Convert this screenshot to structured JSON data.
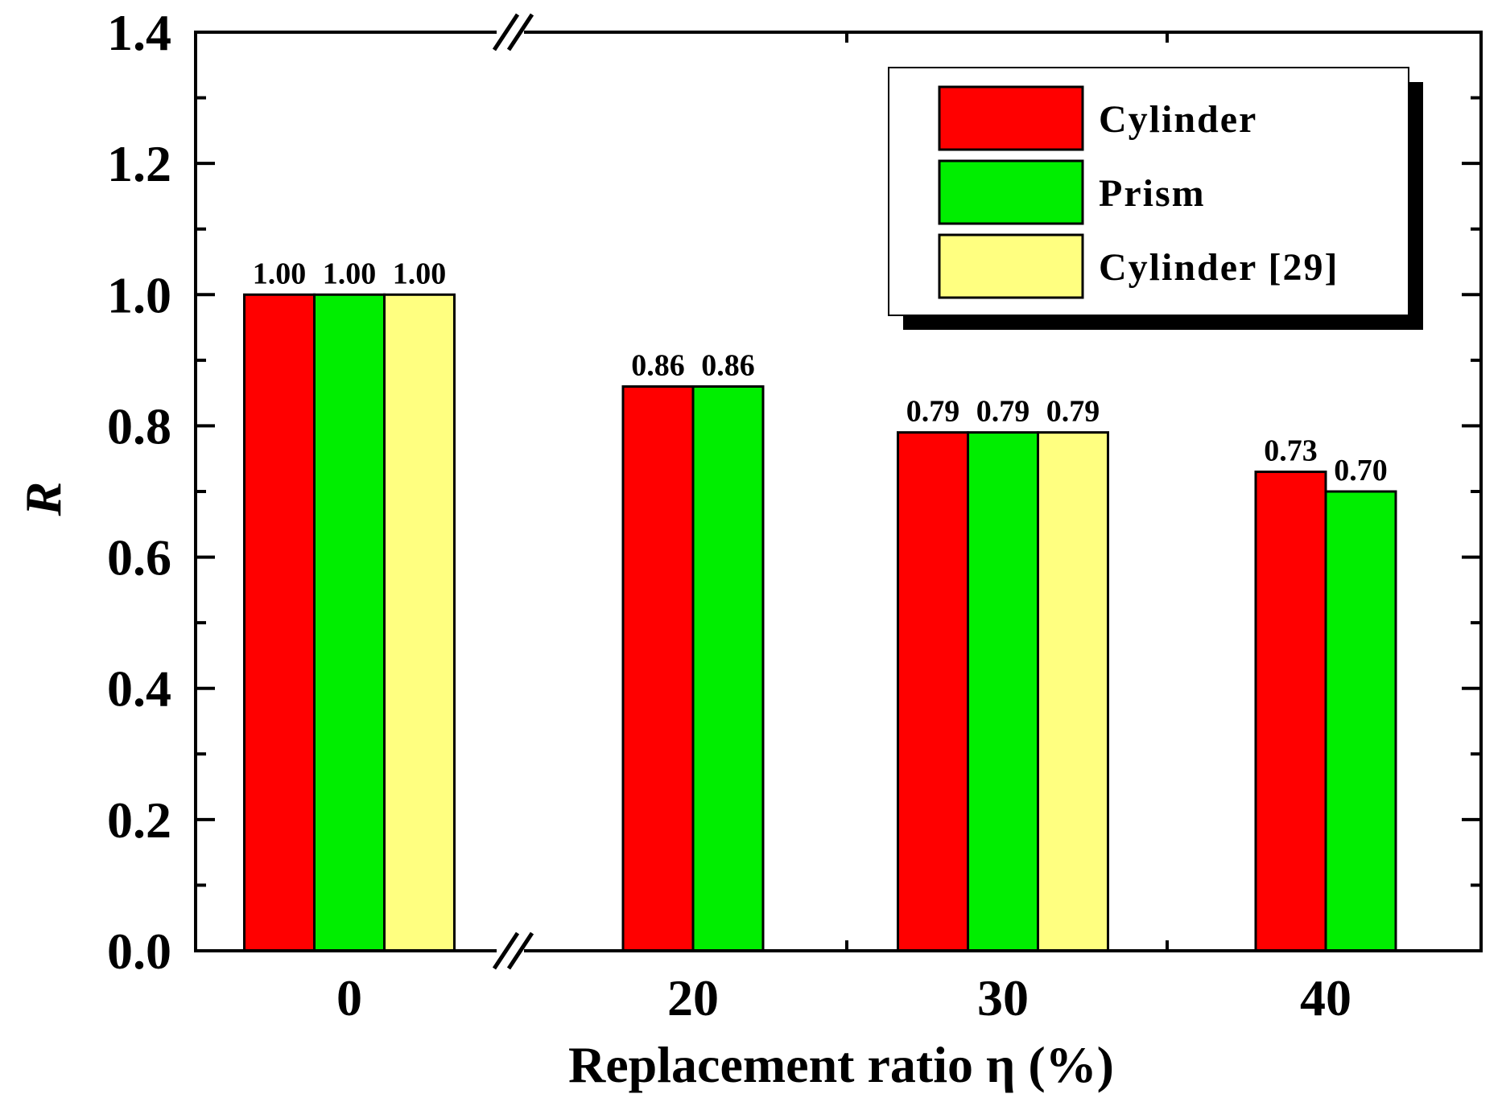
{
  "chart_data": {
    "type": "bar",
    "xlabel": "Replacement ratio η (%)",
    "ylabel": "R",
    "ylim": [
      0,
      1.4
    ],
    "yticks": [
      "0.0",
      "0.2",
      "0.4",
      "0.6",
      "0.8",
      "1.0",
      "1.2",
      "1.4"
    ],
    "categories": [
      "0",
      "20",
      "30",
      "40"
    ],
    "axis_break": "between 0 and 20",
    "legend_position": "top-right",
    "series": [
      {
        "name": "Cylinder",
        "color": "#ff0000",
        "values": [
          1.0,
          0.86,
          0.79,
          0.73
        ],
        "labels": [
          "1.00",
          "0.86",
          "0.79",
          "0.73"
        ]
      },
      {
        "name": "Prism",
        "color": "#00ee00",
        "values": [
          1.0,
          0.86,
          0.79,
          0.7
        ],
        "labels": [
          "1.00",
          "0.86",
          "0.79",
          "0.70"
        ]
      },
      {
        "name": "Cylinder [29]",
        "color": "#ffff80",
        "values": [
          1.0,
          null,
          0.79,
          null
        ],
        "labels": [
          "1.00",
          null,
          "0.79",
          null
        ]
      }
    ]
  }
}
